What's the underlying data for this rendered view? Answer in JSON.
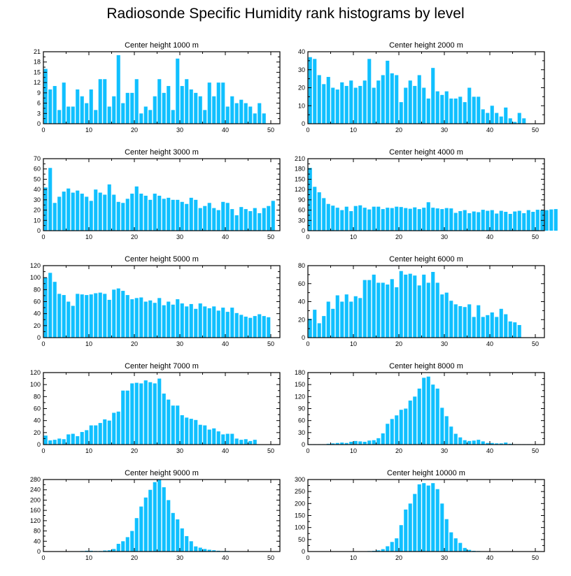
{
  "figure_title": "Radiosonde Specific Humidity rank histograms by level",
  "colors": {
    "bar": "#10c0ff",
    "axis": "#000000",
    "background": "#ffffff"
  },
  "chart_data": [
    {
      "type": "bar",
      "title": "Center height 1000 m",
      "xlabel": "",
      "ylabel": "",
      "xlim": [
        0,
        52
      ],
      "ylim": [
        0,
        21
      ],
      "xticks": [
        0,
        10,
        20,
        30,
        40,
        50
      ],
      "yticks": [
        0,
        3,
        6,
        9,
        12,
        15,
        18,
        21
      ],
      "values": [
        16,
        10,
        11,
        4,
        12,
        5,
        5,
        10,
        8,
        6,
        10,
        4,
        13,
        13,
        5,
        8,
        20,
        6,
        9,
        9,
        13,
        3,
        5,
        4,
        8,
        13,
        9,
        11,
        4,
        19,
        11,
        13,
        10,
        9,
        8,
        4,
        12,
        8,
        12,
        12,
        5,
        8,
        6,
        7,
        6,
        5,
        3,
        6,
        3
      ]
    },
    {
      "type": "bar",
      "title": "Center height 2000 m",
      "xlabel": "",
      "ylabel": "",
      "xlim": [
        0,
        52
      ],
      "ylim": [
        0,
        40
      ],
      "xticks": [
        0,
        10,
        20,
        30,
        40,
        50
      ],
      "yticks": [
        0,
        10,
        20,
        30,
        40
      ],
      "values": [
        37,
        36,
        27,
        22,
        26,
        20,
        19,
        23,
        21,
        24,
        20,
        21,
        24,
        36,
        20,
        24,
        27,
        35,
        28,
        27,
        12,
        20,
        24,
        21,
        27,
        20,
        14,
        31,
        18,
        16,
        18,
        14,
        14,
        15,
        12,
        20,
        15,
        15,
        8,
        6,
        10,
        6,
        4,
        9,
        3,
        1,
        6,
        3
      ]
    },
    {
      "type": "bar",
      "title": "Center height 3000 m",
      "xlabel": "",
      "ylabel": "",
      "xlim": [
        0,
        52
      ],
      "ylim": [
        0,
        70
      ],
      "xticks": [
        0,
        10,
        20,
        30,
        40,
        50
      ],
      "yticks": [
        0,
        10,
        20,
        30,
        40,
        50,
        60,
        70
      ],
      "values": [
        42,
        61,
        27,
        33,
        38,
        41,
        37,
        39,
        36,
        33,
        29,
        40,
        37,
        35,
        45,
        35,
        28,
        27,
        31,
        36,
        43,
        36,
        34,
        30,
        36,
        34,
        31,
        32,
        30,
        30,
        28,
        26,
        32,
        30,
        22,
        24,
        27,
        22,
        20,
        28,
        27,
        21,
        15,
        23,
        21,
        19,
        22,
        17,
        22,
        24,
        29
      ]
    },
    {
      "type": "bar",
      "title": "Center height 4000 m",
      "xlabel": "",
      "ylabel": "",
      "xlim": [
        0,
        52
      ],
      "ylim": [
        0,
        210
      ],
      "xticks": [
        0,
        10,
        20,
        30,
        40,
        50
      ],
      "yticks": [
        0,
        30,
        60,
        90,
        120,
        150,
        180,
        210
      ],
      "values": [
        183,
        128,
        112,
        95,
        78,
        73,
        67,
        60,
        70,
        57,
        72,
        74,
        67,
        62,
        70,
        70,
        63,
        67,
        66,
        70,
        69,
        66,
        64,
        68,
        63,
        67,
        83,
        67,
        65,
        63,
        66,
        65,
        52,
        57,
        60,
        51,
        56,
        54,
        61,
        58,
        60,
        50,
        58,
        55,
        49,
        56,
        58,
        51,
        60,
        55,
        61,
        59,
        60,
        62,
        63
      ]
    },
    {
      "type": "bar",
      "title": "Center height 5000 m",
      "xlabel": "",
      "ylabel": "",
      "xlim": [
        0,
        52
      ],
      "ylim": [
        0,
        120
      ],
      "xticks": [
        0,
        10,
        20,
        30,
        40,
        50
      ],
      "yticks": [
        0,
        20,
        40,
        60,
        80,
        100,
        120
      ],
      "values": [
        100,
        108,
        93,
        73,
        71,
        60,
        53,
        73,
        72,
        71,
        72,
        74,
        75,
        73,
        63,
        80,
        82,
        78,
        71,
        64,
        66,
        67,
        60,
        62,
        58,
        66,
        54,
        60,
        55,
        64,
        57,
        52,
        56,
        48,
        57,
        52,
        49,
        52,
        45,
        50,
        43,
        50,
        41,
        38,
        35,
        33,
        36,
        39,
        36,
        34
      ]
    },
    {
      "type": "bar",
      "title": "Center height 6000 m",
      "xlabel": "",
      "ylabel": "",
      "xlim": [
        0,
        52
      ],
      "ylim": [
        0,
        80
      ],
      "xticks": [
        0,
        10,
        20,
        30,
        40,
        50
      ],
      "yticks": [
        0,
        20,
        40,
        60,
        80
      ],
      "values": [
        21,
        31,
        16,
        24,
        40,
        32,
        47,
        40,
        48,
        40,
        46,
        44,
        64,
        64,
        70,
        61,
        61,
        59,
        65,
        56,
        74,
        70,
        71,
        69,
        58,
        70,
        61,
        73,
        61,
        48,
        50,
        41,
        37,
        35,
        34,
        37,
        23,
        36,
        23,
        25,
        28,
        23,
        32,
        26,
        18,
        17,
        14
      ]
    },
    {
      "type": "bar",
      "title": "Center height 7000 m",
      "xlabel": "",
      "ylabel": "",
      "xlim": [
        0,
        52
      ],
      "ylim": [
        0,
        120
      ],
      "xticks": [
        0,
        10,
        20,
        30,
        40,
        50
      ],
      "yticks": [
        0,
        20,
        40,
        60,
        80,
        100,
        120
      ],
      "values": [
        15,
        7,
        8,
        10,
        9,
        17,
        18,
        14,
        21,
        24,
        32,
        32,
        36,
        42,
        40,
        53,
        55,
        90,
        90,
        102,
        103,
        102,
        107,
        104,
        102,
        110,
        85,
        75,
        65,
        65,
        49,
        45,
        43,
        41,
        33,
        32,
        25,
        27,
        22,
        17,
        18,
        18,
        10,
        8,
        9,
        6,
        8
      ]
    },
    {
      "type": "bar",
      "title": "Center height 8000 m",
      "xlabel": "",
      "ylabel": "",
      "xlim": [
        0,
        52
      ],
      "ylim": [
        0,
        180
      ],
      "xticks": [
        0,
        10,
        20,
        30,
        40,
        50
      ],
      "yticks": [
        0,
        30,
        60,
        90,
        120,
        150,
        180
      ],
      "values": [
        1,
        1,
        1,
        1,
        2,
        3,
        4,
        5,
        4,
        7,
        9,
        8,
        7,
        10,
        11,
        16,
        28,
        52,
        64,
        73,
        87,
        90,
        110,
        120,
        140,
        167,
        170,
        150,
        140,
        92,
        71,
        45,
        27,
        18,
        11,
        9,
        10,
        12,
        8,
        4,
        4,
        3,
        3,
        5,
        2,
        1,
        1,
        1,
        1
      ]
    },
    {
      "type": "bar",
      "title": "Center height 9000 m",
      "xlabel": "",
      "ylabel": "",
      "xlim": [
        0,
        52
      ],
      "ylim": [
        0,
        280
      ],
      "xticks": [
        0,
        10,
        20,
        30,
        40,
        50
      ],
      "yticks": [
        0,
        40,
        80,
        120,
        160,
        200,
        240,
        280
      ],
      "values": [
        0,
        0,
        0,
        0,
        1,
        1,
        1,
        1,
        2,
        3,
        3,
        2,
        2,
        4,
        5,
        10,
        30,
        40,
        56,
        80,
        130,
        175,
        210,
        240,
        270,
        280,
        250,
        200,
        150,
        125,
        90,
        60,
        40,
        20,
        15,
        10,
        7,
        5,
        3,
        2,
        2,
        1,
        1,
        0,
        0,
        0,
        0,
        0
      ]
    },
    {
      "type": "bar",
      "title": "Center height 10000 m",
      "xlabel": "",
      "ylabel": "",
      "xlim": [
        0,
        52
      ],
      "ylim": [
        0,
        300
      ],
      "xticks": [
        0,
        10,
        20,
        30,
        40,
        50
      ],
      "yticks": [
        0,
        50,
        100,
        150,
        200,
        250,
        300
      ],
      "values": [
        0,
        0,
        0,
        0,
        0,
        0,
        0,
        0,
        0,
        1,
        1,
        1,
        1,
        2,
        3,
        5,
        10,
        22,
        40,
        55,
        110,
        175,
        200,
        240,
        280,
        285,
        275,
        285,
        260,
        200,
        135,
        80,
        55,
        36,
        15,
        7,
        3,
        2,
        1,
        1,
        0,
        0,
        0,
        0,
        0,
        0,
        0,
        0
      ]
    }
  ]
}
